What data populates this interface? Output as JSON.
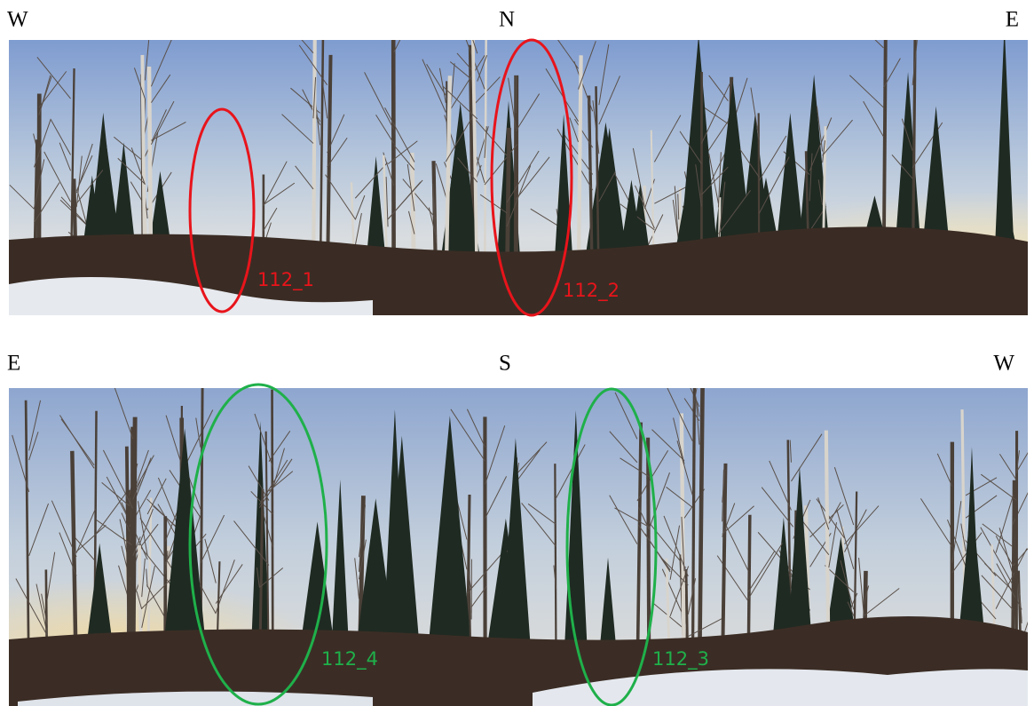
{
  "panels": [
    {
      "directions": {
        "left": "W",
        "center": "N",
        "right": "E"
      },
      "markers": [
        {
          "label": "112_1"
        },
        {
          "label": "112_2"
        }
      ]
    },
    {
      "directions": {
        "left": "E",
        "center": "S",
        "right": "W"
      },
      "markers": [
        {
          "label": "112_4"
        },
        {
          "label": "112_3"
        }
      ]
    }
  ]
}
